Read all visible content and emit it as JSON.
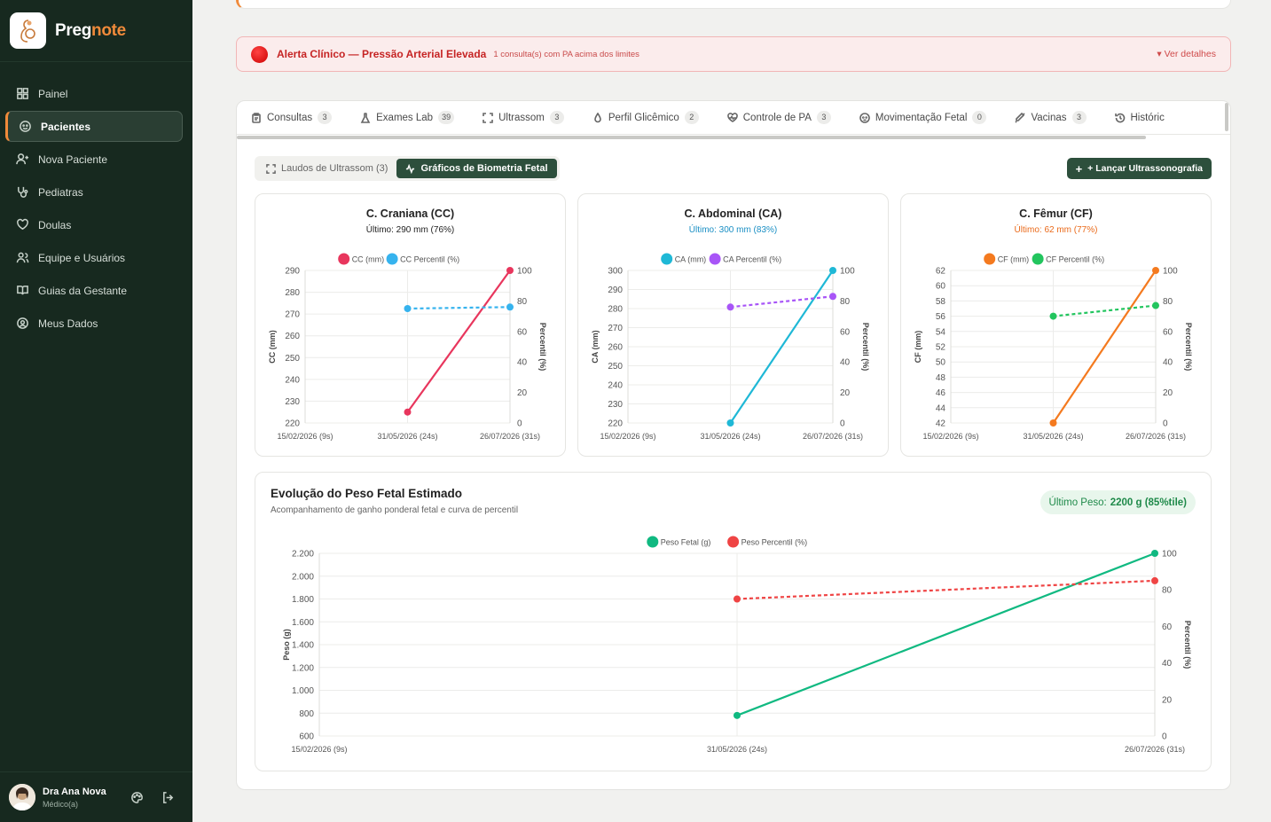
{
  "brand": {
    "part1": "Preg",
    "part2": "note"
  },
  "nav": [
    {
      "label": "Painel",
      "icon": "grid-icon"
    },
    {
      "label": "Pacientes",
      "icon": "face-icon",
      "active": true
    },
    {
      "label": "Nova Paciente",
      "icon": "user-plus-icon"
    },
    {
      "label": "Pediatras",
      "icon": "stethoscope-icon"
    },
    {
      "label": "Doulas",
      "icon": "heart-hands-icon"
    },
    {
      "label": "Equipe e Usuários",
      "icon": "users-icon"
    },
    {
      "label": "Guias da Gestante",
      "icon": "book-icon"
    },
    {
      "label": "Meus Dados",
      "icon": "user-circle-icon"
    }
  ],
  "user": {
    "name": "Dra Ana Nova",
    "role": "Médico(a)"
  },
  "alert": {
    "title": "Alerta Clínico — Pressão Arterial Elevada",
    "subtitle": "1 consulta(s) com PA acima dos limites",
    "link": "▾ Ver detalhes"
  },
  "tabs": [
    {
      "label": "Consultas",
      "count": "3"
    },
    {
      "label": "Exames Lab",
      "count": "39"
    },
    {
      "label": "Ultrassom",
      "count": "3"
    },
    {
      "label": "Perfil Glicêmico",
      "count": "2"
    },
    {
      "label": "Controle de PA",
      "count": "3"
    },
    {
      "label": "Movimentação Fetal",
      "count": "0"
    },
    {
      "label": "Vacinas",
      "count": "3"
    },
    {
      "label": "Históric",
      "count": ""
    }
  ],
  "subtabs": {
    "reports": "Laudos de Ultrassom (3)",
    "charts": "Gráficos de Biometria Fetal"
  },
  "new_button": "+ Lançar Ultrassonografia",
  "weight": {
    "title": "Evolução do Peso Fetal Estimado",
    "subtitle": "Acompanhamento de ganho ponderal fetal e curva de percentil",
    "badge_label": "Último Peso:",
    "badge_value": "2200 g (85%tile)"
  },
  "colors": {
    "sidebar": "#17291f",
    "accent": "#f08a3a",
    "primary": "#2d4f3c",
    "alert": "#c62424"
  },
  "chart_data": [
    {
      "type": "line",
      "title": "C. Craniana (CC)",
      "subtitle": "Último: 290 mm (76%)",
      "subtitle_color": "#222222",
      "x": [
        "15/02/2026 (9s)",
        "31/05/2026 (24s)",
        "26/07/2026 (31s)"
      ],
      "ylabel": "CC (mm)",
      "y2label": "Percentil (%)",
      "ylim": [
        220,
        290
      ],
      "yticks": [
        "220",
        "230",
        "240",
        "250",
        "260",
        "270",
        "280",
        "290"
      ],
      "y2lim": [
        0,
        100
      ],
      "y2ticks": [
        "0",
        "20",
        "40",
        "60",
        "80",
        "100"
      ],
      "series": [
        {
          "name": "CC (mm)",
          "color": "#e8365d",
          "values": [
            null,
            225,
            290
          ],
          "axis": "left",
          "dashed": false
        },
        {
          "name": "CC Percentil (%)",
          "color": "#36b3ee",
          "values": [
            null,
            75,
            76
          ],
          "axis": "right",
          "dashed": true
        }
      ]
    },
    {
      "type": "line",
      "title": "C. Abdominal (CA)",
      "subtitle": "Último: 300 mm (83%)",
      "subtitle_color": "#1a8fc4",
      "x": [
        "15/02/2026 (9s)",
        "31/05/2026 (24s)",
        "26/07/2026 (31s)"
      ],
      "ylabel": "CA (mm)",
      "y2label": "Percentil (%)",
      "ylim": [
        220,
        300
      ],
      "yticks": [
        "220",
        "230",
        "240",
        "250",
        "260",
        "270",
        "280",
        "290",
        "300"
      ],
      "y2lim": [
        0,
        100
      ],
      "y2ticks": [
        "0",
        "20",
        "40",
        "60",
        "80",
        "100"
      ],
      "series": [
        {
          "name": "CA (mm)",
          "color": "#1fb8d6",
          "values": [
            null,
            220,
            300
          ],
          "axis": "left",
          "dashed": false
        },
        {
          "name": "CA Percentil (%)",
          "color": "#a855f7",
          "values": [
            null,
            76,
            83
          ],
          "axis": "right",
          "dashed": true
        }
      ]
    },
    {
      "type": "line",
      "title": "C. Fêmur (CF)",
      "subtitle": "Último: 62 mm (77%)",
      "subtitle_color": "#ea6a1a",
      "x": [
        "15/02/2026 (9s)",
        "31/05/2026 (24s)",
        "26/07/2026 (31s)"
      ],
      "ylabel": "CF (mm)",
      "y2label": "Percentil (%)",
      "ylim": [
        42,
        62
      ],
      "yticks": [
        "42",
        "44",
        "46",
        "48",
        "50",
        "52",
        "54",
        "56",
        "58",
        "60",
        "62"
      ],
      "y2lim": [
        0,
        100
      ],
      "y2ticks": [
        "0",
        "20",
        "40",
        "60",
        "80",
        "100"
      ],
      "series": [
        {
          "name": "CF (mm)",
          "color": "#f47a1f",
          "values": [
            null,
            42,
            62
          ],
          "axis": "left",
          "dashed": false
        },
        {
          "name": "CF Percentil (%)",
          "color": "#22c55e",
          "values": [
            null,
            70,
            77
          ],
          "axis": "right",
          "dashed": true
        }
      ]
    },
    {
      "type": "line",
      "title": "Evolução do Peso Fetal Estimado",
      "x": [
        "15/02/2026 (9s)",
        "31/05/2026 (24s)",
        "26/07/2026 (31s)"
      ],
      "ylabel": "Peso (g)",
      "y2label": "Percentil (%)",
      "ylim": [
        600,
        2200
      ],
      "yticks": [
        "600",
        "800",
        "1.000",
        "1.200",
        "1.400",
        "1.600",
        "1.800",
        "2.000",
        "2.200"
      ],
      "y2lim": [
        0,
        100
      ],
      "y2ticks": [
        "0",
        "20",
        "40",
        "60",
        "80",
        "100"
      ],
      "series": [
        {
          "name": "Peso Fetal (g)",
          "color": "#10b981",
          "values": [
            null,
            780,
            2200
          ],
          "axis": "left",
          "dashed": false
        },
        {
          "name": "Peso Percentil (%)",
          "color": "#ef4444",
          "values": [
            null,
            75,
            85
          ],
          "axis": "right",
          "dashed": true
        }
      ]
    }
  ]
}
